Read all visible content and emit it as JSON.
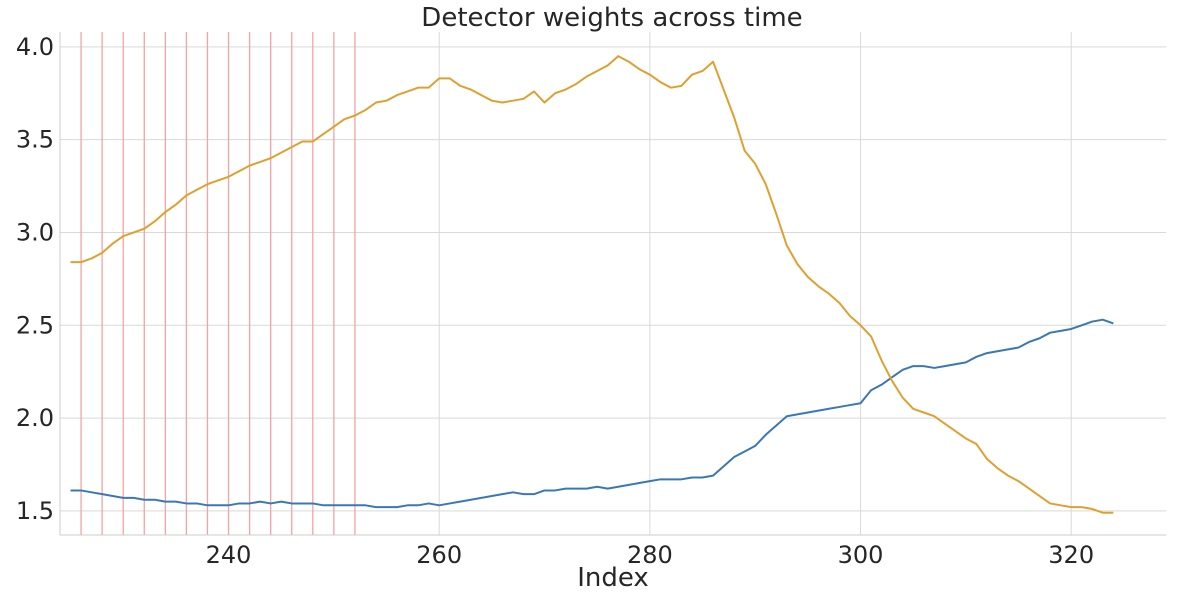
{
  "chart_data": {
    "type": "line",
    "title": "Detector weights across time",
    "xlabel": "Index",
    "ylabel": "",
    "xlim": [
      224,
      329
    ],
    "ylim": [
      1.37,
      4.08
    ],
    "xticks": [
      240,
      260,
      280,
      300,
      320
    ],
    "yticks": [
      1.5,
      2.0,
      2.5,
      3.0,
      3.5,
      4.0
    ],
    "xtick_labels": [
      "240",
      "260",
      "280",
      "300",
      "320"
    ],
    "ytick_labels": [
      "1.5",
      "2.0",
      "2.5",
      "3.0",
      "3.5",
      "4.0"
    ],
    "grid": true,
    "colors": {
      "series_blue": "#3a78b5",
      "series_orange": "#e0a030",
      "event_lines": "#f4a3a3"
    },
    "event_x": [
      226,
      228,
      230,
      232,
      234,
      236,
      238,
      240,
      242,
      244,
      246,
      248,
      250,
      252
    ],
    "x": [
      225,
      226,
      227,
      228,
      229,
      230,
      231,
      232,
      233,
      234,
      235,
      236,
      237,
      238,
      239,
      240,
      241,
      242,
      243,
      244,
      245,
      246,
      247,
      248,
      249,
      250,
      251,
      252,
      253,
      254,
      255,
      256,
      257,
      258,
      259,
      260,
      261,
      262,
      263,
      264,
      265,
      266,
      267,
      268,
      269,
      270,
      271,
      272,
      273,
      274,
      275,
      276,
      277,
      278,
      279,
      280,
      281,
      282,
      283,
      284,
      285,
      286,
      287,
      288,
      289,
      290,
      291,
      292,
      293,
      294,
      295,
      296,
      297,
      298,
      299,
      300,
      301,
      302,
      303,
      304,
      305,
      306,
      307,
      308,
      309,
      310,
      311,
      312,
      313,
      314,
      315,
      316,
      317,
      318,
      319,
      320,
      321,
      322,
      323,
      324
    ],
    "series": [
      {
        "color": "#3a78b5",
        "values": [
          1.61,
          1.61,
          1.6,
          1.59,
          1.58,
          1.57,
          1.57,
          1.56,
          1.56,
          1.55,
          1.55,
          1.54,
          1.54,
          1.53,
          1.53,
          1.53,
          1.54,
          1.54,
          1.55,
          1.54,
          1.55,
          1.54,
          1.54,
          1.54,
          1.53,
          1.53,
          1.53,
          1.53,
          1.53,
          1.52,
          1.52,
          1.52,
          1.53,
          1.53,
          1.54,
          1.53,
          1.54,
          1.55,
          1.56,
          1.57,
          1.58,
          1.59,
          1.6,
          1.59,
          1.59,
          1.61,
          1.61,
          1.62,
          1.62,
          1.62,
          1.63,
          1.62,
          1.63,
          1.64,
          1.65,
          1.66,
          1.67,
          1.67,
          1.67,
          1.68,
          1.68,
          1.69,
          1.74,
          1.79,
          1.82,
          1.85,
          1.91,
          1.96,
          2.01,
          2.02,
          2.03,
          2.04,
          2.05,
          2.06,
          2.07,
          2.08,
          2.15,
          2.18,
          2.22,
          2.26,
          2.28,
          2.28,
          2.27,
          2.28,
          2.29,
          2.3,
          2.33,
          2.35,
          2.36,
          2.37,
          2.38,
          2.41,
          2.43,
          2.46,
          2.47,
          2.48,
          2.5,
          2.52,
          2.53,
          2.51
        ]
      },
      {
        "color": "#e0a030",
        "values": [
          2.84,
          2.84,
          2.86,
          2.89,
          2.94,
          2.98,
          3.0,
          3.02,
          3.06,
          3.11,
          3.15,
          3.2,
          3.23,
          3.26,
          3.28,
          3.3,
          3.33,
          3.36,
          3.38,
          3.4,
          3.43,
          3.46,
          3.49,
          3.49,
          3.53,
          3.57,
          3.61,
          3.63,
          3.66,
          3.7,
          3.71,
          3.74,
          3.76,
          3.78,
          3.78,
          3.83,
          3.83,
          3.79,
          3.77,
          3.74,
          3.71,
          3.7,
          3.71,
          3.72,
          3.76,
          3.7,
          3.75,
          3.77,
          3.8,
          3.84,
          3.87,
          3.9,
          3.95,
          3.92,
          3.88,
          3.85,
          3.81,
          3.78,
          3.79,
          3.85,
          3.87,
          3.92,
          3.77,
          3.62,
          3.44,
          3.37,
          3.26,
          3.1,
          2.93,
          2.83,
          2.76,
          2.71,
          2.67,
          2.62,
          2.55,
          2.5,
          2.44,
          2.31,
          2.2,
          2.11,
          2.05,
          2.03,
          2.01,
          1.97,
          1.93,
          1.89,
          1.86,
          1.78,
          1.73,
          1.69,
          1.66,
          1.62,
          1.58,
          1.54,
          1.53,
          1.52,
          1.52,
          1.51,
          1.49,
          1.49
        ]
      }
    ]
  }
}
